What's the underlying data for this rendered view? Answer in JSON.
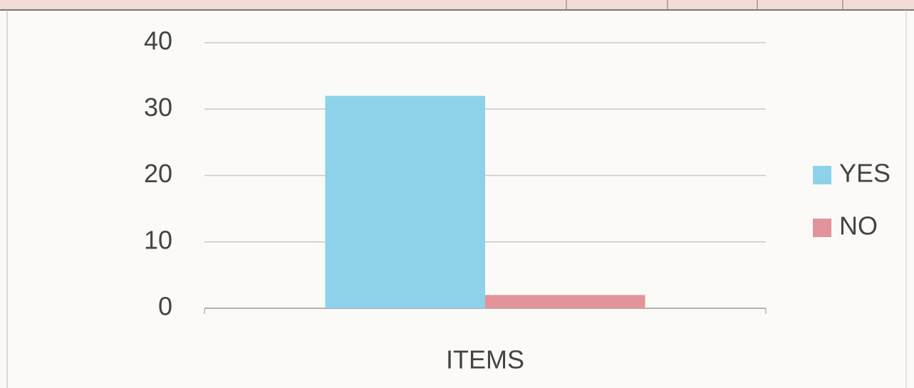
{
  "chart_data": {
    "type": "bar",
    "categories": [
      "ITEMS"
    ],
    "series": [
      {
        "name": "YES",
        "color": "#8dd2ea",
        "values": [
          32
        ]
      },
      {
        "name": "NO",
        "color": "#e3949b",
        "values": [
          2
        ]
      }
    ],
    "ylim": [
      0,
      40
    ],
    "yticks": [
      0,
      10,
      20,
      30,
      40
    ],
    "grid": true,
    "legend": "right"
  }
}
